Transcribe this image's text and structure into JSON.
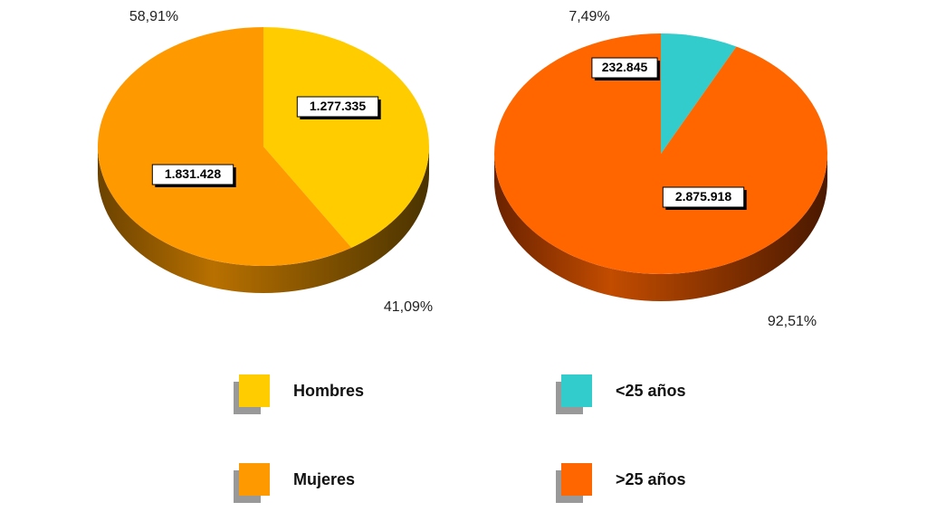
{
  "chart_data": [
    {
      "type": "pie",
      "categories": [
        "Hombres",
        "Mujeres"
      ],
      "values": [
        1277335,
        1831428
      ],
      "value_labels": [
        "1.277.335",
        "1.831.428"
      ],
      "percent_labels": [
        "41,09%",
        "58,91%"
      ],
      "colors": [
        "#FFCC00",
        "#FF9900"
      ],
      "shadow_colors": [
        "#7a6000",
        "#8a4a00"
      ]
    },
    {
      "type": "pie",
      "categories": [
        "<25 años",
        ">25 años"
      ],
      "values": [
        232845,
        2875918
      ],
      "value_labels": [
        "232.845",
        "2.875.918"
      ],
      "percent_labels": [
        "7,49%",
        "92,51%"
      ],
      "colors": [
        "#33CCCC",
        "#FF6600"
      ],
      "shadow_colors": [
        "#1a7070",
        "#8a3300"
      ]
    }
  ],
  "legend": {
    "items": [
      {
        "label": "Hombres",
        "color": "#FFCC00"
      },
      {
        "label": "<25 años",
        "color": "#33CCCC"
      },
      {
        "label": "Mujeres",
        "color": "#FF9900"
      },
      {
        "label": ">25 años",
        "color": "#FF6600"
      }
    ]
  }
}
